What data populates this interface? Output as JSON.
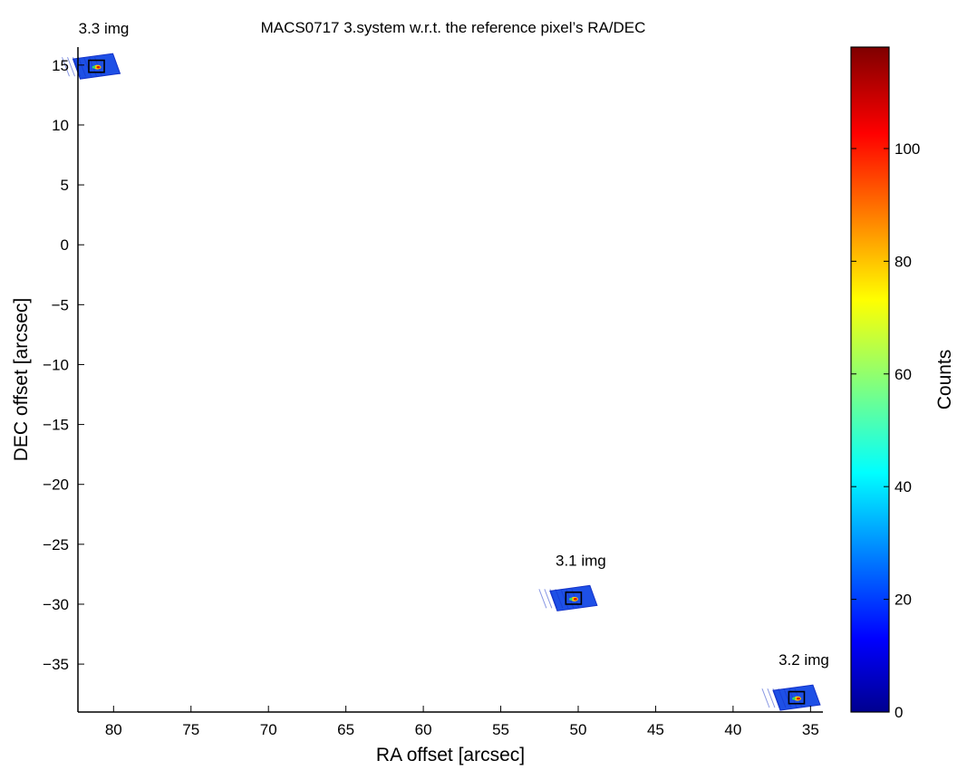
{
  "chart_data": {
    "type": "heatmap",
    "title": "MACS0717  3.system w.r.t. the reference pixel’s RA/DEC",
    "xlabel": "RA offset [arcsec]",
    "ylabel": "DEC offset [arcsec]",
    "xlim": [
      82.3,
      34.2
    ],
    "ylim": [
      -39,
      16.5
    ],
    "x_reversed": true,
    "xticks": [
      80,
      75,
      70,
      65,
      60,
      55,
      50,
      45,
      40,
      35
    ],
    "yticks": [
      15,
      10,
      5,
      0,
      -5,
      -10,
      -15,
      -20,
      -25,
      -30,
      -35
    ],
    "colorbar": {
      "label": "Counts",
      "min": 0,
      "max": 118,
      "ticks": [
        0,
        20,
        40,
        60,
        80,
        100
      ],
      "colormap": "jet"
    },
    "images": [
      {
        "label": "3.1 img",
        "ra": 50.3,
        "dec": -29.5,
        "box_size": 1.0
      },
      {
        "label": "3.2 img",
        "ra": 35.9,
        "dec": -37.8,
        "box_size": 1.0
      },
      {
        "label": "3.3 img",
        "ra": 81.1,
        "dec": 14.9,
        "box_size": 1.0
      }
    ],
    "grid": false
  },
  "colors": {
    "stamp_fill": "#1e50e6",
    "stamp_fill_dark": "#1432c8",
    "axis": "#000000"
  }
}
